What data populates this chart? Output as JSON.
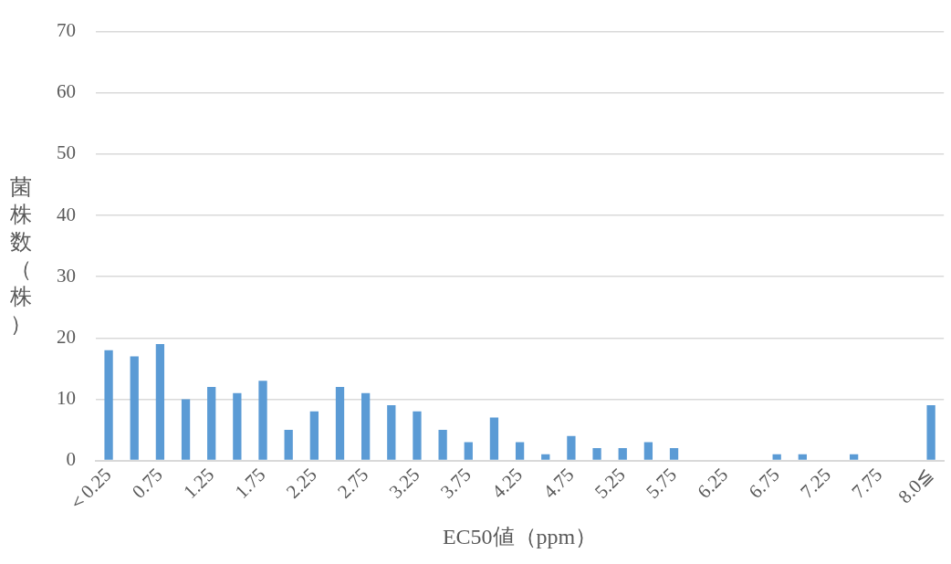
{
  "chart_data": {
    "type": "bar",
    "xlabel": "EC50値（ppm）",
    "ylabel": "菌株数（株）",
    "categories": [
      "＜0.25",
      null,
      "0.75",
      null,
      "1.25",
      null,
      "1.75",
      null,
      "2.25",
      null,
      "2.75",
      null,
      "3.25",
      null,
      "3.75",
      null,
      "4.25",
      null,
      "4.75",
      null,
      "5.25",
      null,
      "5.75",
      null,
      "6.25",
      null,
      "6.75",
      null,
      "7.25",
      null,
      "7.75",
      null,
      "8.0≦"
    ],
    "values": [
      18,
      17,
      19,
      10,
      12,
      11,
      13,
      5,
      8,
      12,
      11,
      9,
      8,
      5,
      3,
      7,
      3,
      1,
      4,
      2,
      2,
      3,
      2,
      0,
      0,
      0,
      1,
      1,
      0,
      1,
      0,
      0,
      9
    ],
    "color": "#5b9bd5",
    "ylim": [
      0,
      70
    ],
    "yticks": [
      0,
      10,
      20,
      30,
      40,
      50,
      60,
      70
    ],
    "grid": "y",
    "legend": false
  }
}
